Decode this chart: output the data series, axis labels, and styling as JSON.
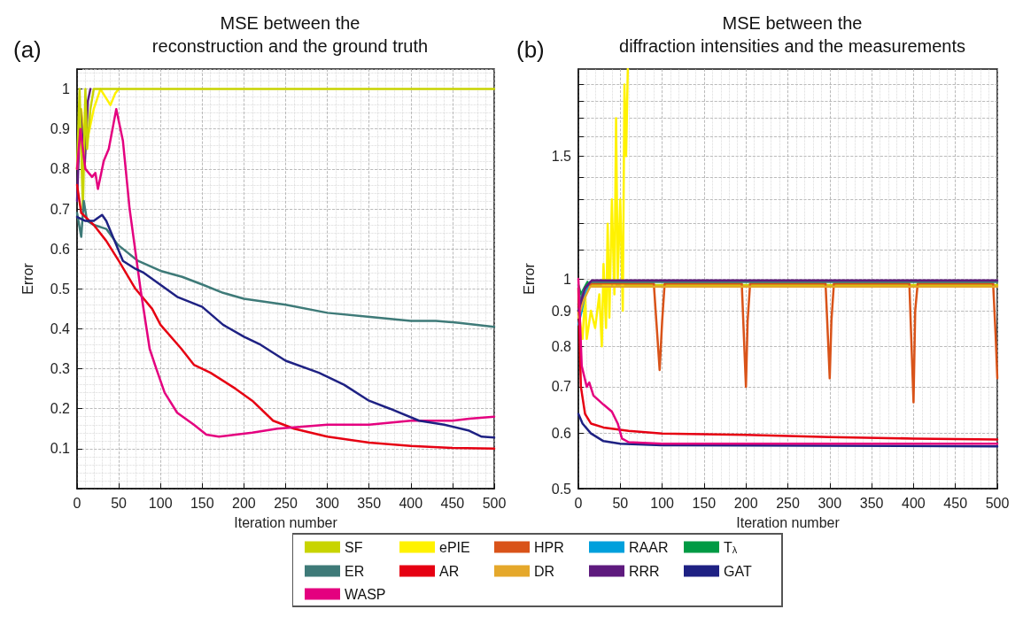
{
  "chart_data": [
    {
      "type": "line",
      "title": "MSE between the\nreconstruction and the ground truth",
      "xlabel": "Iteration number",
      "ylabel": "Error",
      "annotations": [
        "(a)"
      ],
      "xlim": [
        0,
        500
      ],
      "xticks": [
        0,
        50,
        100,
        150,
        200,
        250,
        300,
        350,
        400,
        450,
        500
      ],
      "ylim": [
        0,
        1.05
      ],
      "yticks": [
        0.1,
        0.2,
        0.3,
        0.4,
        0.5,
        0.6,
        0.7,
        0.8,
        0.9,
        1
      ],
      "grid": true,
      "marker": "none",
      "line_style": "solid",
      "series": [
        {
          "color": "#fff200",
          "x": [
            0,
            5,
            10,
            15,
            20,
            28,
            34,
            40,
            46,
            50
          ],
          "values": [
            0.8,
            0.95,
            0.85,
            0.9,
            0.95,
            1,
            0.98,
            0.96,
            0.99,
            1
          ]
        },
        {
          "color": "#5e1a7e",
          "x": [
            0,
            4,
            9,
            13,
            16
          ],
          "values": [
            0.72,
            0.95,
            0.8,
            0.97,
            1
          ]
        },
        {
          "color": "#c8d400",
          "x": [
            0,
            3,
            7,
            10,
            12,
            16,
            20,
            500
          ],
          "values": [
            0.8,
            1,
            0.7,
            1,
            0.85,
            0.95,
            1,
            1
          ]
        },
        {
          "color": "#3e7a78",
          "x": [
            0,
            5,
            8,
            12,
            20,
            35,
            49,
            73,
            100,
            126,
            151,
            175,
            200,
            250,
            300,
            351,
            400,
            430,
            458,
            500
          ],
          "values": [
            0.69,
            0.63,
            0.72,
            0.67,
            0.66,
            0.65,
            0.61,
            0.57,
            0.545,
            0.53,
            0.51,
            0.49,
            0.475,
            0.46,
            0.44,
            0.43,
            0.42,
            0.42,
            0.415,
            0.405
          ]
        },
        {
          "color": "#e60012",
          "x": [
            0,
            5,
            20,
            35,
            50,
            70,
            90,
            100,
            125,
            140,
            160,
            190,
            210,
            235,
            260,
            300,
            350,
            400,
            450,
            500
          ],
          "values": [
            0.76,
            0.69,
            0.66,
            0.62,
            0.57,
            0.5,
            0.45,
            0.41,
            0.35,
            0.31,
            0.29,
            0.25,
            0.22,
            0.17,
            0.15,
            0.13,
            0.115,
            0.107,
            0.102,
            0.1
          ]
        },
        {
          "color": "#e4007f",
          "x": [
            0,
            4,
            10,
            18,
            22,
            25,
            32,
            38,
            47,
            55,
            63,
            76,
            87,
            95,
            105,
            120,
            140,
            155,
            170,
            190,
            210,
            240,
            270,
            300,
            350,
            400,
            450,
            470,
            500
          ],
          "values": [
            0.8,
            0.9,
            0.8,
            0.78,
            0.79,
            0.75,
            0.82,
            0.85,
            0.95,
            0.87,
            0.7,
            0.5,
            0.35,
            0.3,
            0.24,
            0.19,
            0.16,
            0.135,
            0.13,
            0.135,
            0.14,
            0.15,
            0.155,
            0.16,
            0.16,
            0.17,
            0.17,
            0.175,
            0.18
          ]
        },
        {
          "color": "#1e2183",
          "x": [
            0,
            10,
            20,
            30,
            35,
            45,
            55,
            70,
            80,
            100,
            120,
            150,
            175,
            200,
            220,
            250,
            290,
            320,
            350,
            375,
            410,
            440,
            470,
            485,
            500
          ],
          "values": [
            0.68,
            0.67,
            0.67,
            0.685,
            0.67,
            0.62,
            0.57,
            0.55,
            0.54,
            0.51,
            0.48,
            0.455,
            0.41,
            0.38,
            0.36,
            0.32,
            0.29,
            0.26,
            0.22,
            0.2,
            0.17,
            0.16,
            0.145,
            0.13,
            0.128
          ]
        }
      ]
    },
    {
      "type": "line",
      "title": "MSE between the\ndiffraction intensities and the measurements",
      "xlabel": "Iteration number",
      "ylabel": "Error",
      "annotations": [
        "(b)"
      ],
      "xlim": [
        0,
        500
      ],
      "xticks": [
        0,
        50,
        100,
        150,
        200,
        250,
        300,
        350,
        400,
        450,
        500
      ],
      "ylim": [
        0.5,
        2
      ],
      "yticks": [
        0.5,
        0.6,
        0.7,
        0.8,
        0.9,
        1,
        {
          "value": 1.1,
          "label": null
        },
        {
          "value": 1.2,
          "label": null
        },
        {
          "value": 1.3,
          "label": null
        },
        {
          "value": 1.4,
          "label": null
        },
        1.5,
        {
          "value": 1.6,
          "label": null
        },
        {
          "value": 1.7,
          "label": null
        },
        {
          "value": 1.8,
          "label": null
        },
        {
          "value": 1.9,
          "label": null
        }
      ],
      "log": true,
      "grid": true,
      "legend": "bottom",
      "marker": "none",
      "line_style": "solid",
      "series": [
        {
          "name": "SF",
          "color": "#c8d400",
          "x": [
            0,
            5,
            10,
            15,
            500
          ],
          "values": [
            0.9,
            0.93,
            0.96,
            0.98,
            0.98
          ]
        },
        {
          "name": "ePIE",
          "color": "#fff200",
          "x": [
            0,
            5,
            8,
            10,
            15,
            20,
            25,
            28,
            30,
            33,
            35,
            37,
            40,
            43,
            45,
            47,
            50,
            53,
            55,
            57,
            59
          ],
          "values": [
            0.9,
            0.82,
            0.95,
            0.82,
            0.9,
            0.85,
            0.95,
            0.8,
            1.05,
            0.85,
            1.2,
            0.88,
            1.3,
            0.95,
            1.7,
            1,
            1.3,
            0.9,
            1.9,
            1.5,
            2
          ]
        },
        {
          "name": "HPR",
          "color": "#d95319",
          "x": [
            0,
            10,
            15,
            90,
            97,
            100,
            103,
            195,
            200,
            202,
            205,
            295,
            300,
            302,
            305,
            395,
            400,
            402,
            405,
            495,
            498,
            500
          ],
          "values": [
            0.9,
            0.96,
            0.985,
            0.985,
            0.74,
            0.87,
            0.985,
            0.985,
            0.7,
            0.87,
            0.985,
            0.985,
            0.72,
            0.87,
            0.985,
            0.985,
            0.665,
            0.9,
            0.985,
            0.985,
            0.83,
            0.72
          ]
        },
        {
          "name": "RAAR",
          "color": "#00a0dc",
          "x": [
            0,
            4,
            8,
            12
          ],
          "values": [
            0.86,
            0.9,
            0.95,
            0.975
          ]
        },
        {
          "name": "T$_{λ}$",
          "color": "#009a44",
          "x": [
            0,
            3,
            7,
            11
          ],
          "values": [
            0.98,
            0.95,
            0.97,
            0.99
          ]
        },
        {
          "name": "ER",
          "color": "#3e7a78",
          "x": [
            0,
            6,
            14,
            500
          ],
          "values": [
            0.92,
            0.96,
            0.99,
            0.99
          ]
        },
        {
          "name": "AR",
          "color": "#e60012",
          "x": [
            0,
            3,
            8,
            15,
            30,
            60,
            100,
            200,
            300,
            400,
            500
          ],
          "values": [
            0.97,
            0.7,
            0.64,
            0.62,
            0.612,
            0.605,
            0.6,
            0.597,
            0.593,
            0.59,
            0.588
          ]
        },
        {
          "name": "DR",
          "color": "#e5a82b",
          "x": [
            0,
            6,
            14,
            500
          ],
          "values": [
            0.88,
            0.93,
            0.975,
            0.975
          ]
        },
        {
          "name": "RRR",
          "color": "#5e1a7e",
          "x": [
            0,
            8,
            16,
            500
          ],
          "values": [
            0.9,
            0.97,
            0.995,
            0.995
          ]
        },
        {
          "name": "GAT",
          "color": "#1e2183",
          "x": [
            0,
            5,
            15,
            30,
            50,
            100,
            500
          ],
          "values": [
            0.64,
            0.62,
            0.6,
            0.585,
            0.58,
            0.577,
            0.575
          ]
        },
        {
          "name": "WASP",
          "color": "#e4007f",
          "x": [
            0,
            4,
            10,
            13,
            18,
            30,
            40,
            47,
            52,
            60,
            100,
            500
          ],
          "values": [
            1,
            0.75,
            0.7,
            0.71,
            0.68,
            0.66,
            0.645,
            0.62,
            0.59,
            0.583,
            0.58,
            0.58
          ]
        }
      ]
    }
  ]
}
